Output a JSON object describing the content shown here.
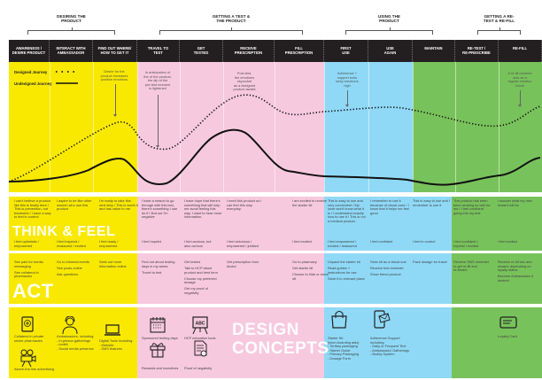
{
  "stages": [
    {
      "label": "DESIRING THE\nPRODUCT"
    },
    {
      "label": "GETTING A TEST &\nTHE PRODUCT"
    },
    {
      "label": "USING THE\nPRODUCT"
    },
    {
      "label": "GETTING A RE-\nTEST & RE-FILL"
    }
  ],
  "legend": {
    "designed": "Designed Journey",
    "undesigned": "Undesigned Journey"
  },
  "annotations": [
    "Desire for the\nproduct increases\npositive emotions",
    "In anticipation of\nthe of the product,\nthe dip of the\npre-test moment\nis lightened",
    "Post-test,\nthe emotions\nskyrocket\nas a designed\nproduct awaits",
    "Adherence +\nsupport tools\nkeep emotions\nhigh",
    "A re-fill moment\nacts as a\nregular emotion\nboost"
  ],
  "row_labels": {
    "think": "THINK & FEEL",
    "act": "ACT",
    "design": "DESIGN\nCONCEPTS"
  },
  "columns": [
    {
      "header": "AWARENESS /\nDESIRE PRODUCT",
      "think": "I can't believe a product like this is finally here / This is prevention, not treatment / I have a way to feel in control",
      "feel": "I feel optimistic /\nempowered",
      "act": [
        "See paid for media messaging",
        "See collateral in pharmacies"
      ]
    },
    {
      "header": "INTERACT WITH\nAMBASSADOR",
      "think": "I aspire to be like other women who use this product",
      "feel": "I feel inspired /\nreassured / excited",
      "act": [
        "Go to informal events",
        "See posts online",
        "Ask questions"
      ]
    },
    {
      "header": "FIND OUT WHERE/\nHOW TO GET IT",
      "think": "I'm ready to take this next step / This is worth it and has value to me",
      "feel": "I feel ready /\nempowered",
      "act": [
        "Seek out more information online"
      ]
    },
    {
      "header": "TRAVEL TO\nTEST",
      "think": "I have a reason to go through with this test, there's something I can do if I find out I'm negative",
      "feel": "I feel hopeful",
      "act": [
        "Find out about testing days in my areas",
        "Travel to test"
      ]
    },
    {
      "header": "GET\nTESTED",
      "think": "I have hope that there's something that will help me avoid feeling this way. I want to hear more information.",
      "feel": "I feel anxious, but\nalso curious",
      "act": [
        "Get tested",
        "Talk to HCP about product and best form",
        "Choose my preferred dosage",
        "Get my proof of negativity"
      ]
    },
    {
      "header": "RECEIVE\nPRESCRIPTION",
      "think": "I need this product so I can feel this way everyday.",
      "feel": "I feel victorious /\nempowered / jubilant",
      "act": [
        "Get prescription from doctor"
      ]
    },
    {
      "header": "FILL\nPRESCRIPTION",
      "think": "I am excited to receive the starter kit",
      "feel": "I feel excited",
      "act": [
        "Go to pharmacy",
        "Get starter kit",
        "Choose to hide or show off"
      ]
    },
    {
      "header": "FIRST\nUSE",
      "think": "This is easy to use and very convenient / My lover won't know what it is / I understand exactly how to use it / This is not a medical product.",
      "feel": "I feel empowered /\nexcited / reassured",
      "act": [
        "Unpack the starter kit",
        "Read guides + instructions for use",
        "Store it in relevant place"
      ]
    },
    {
      "header": "USE\nAGAIN",
      "think": "I remember to use it because of visual cues / I know that it helps me feel good",
      "feel": "I feel confident",
      "act": [
        "Sees kit as a visual cue",
        "Receive text reminder",
        "Show friend product"
      ]
    },
    {
      "header": "MAINTAIN",
      "think": "This is easy to use and I remember to use it",
      "feel": "I feel in control",
      "act": [
        "Pack dosage for travel"
      ]
    },
    {
      "header": "RE-TEST /\nRE-PRESCRIBE",
      "think": "This product has been been working so well for me / I feel confident going into my test",
      "feel": "I feel confident /\nhopeful / excited",
      "act": [
        "Receive SMS reminder\nto get re-fill and\nre-tested"
      ]
    },
    {
      "header": "RE-FILL",
      "think": "I wonder what my new reward will be",
      "feel": "I feel excited",
      "act": [
        "Receive re-fill box and reward, depending on loyalty status",
        "Become Ambassador if desired"
      ]
    }
  ],
  "design_concepts": [
    {
      "icon": "pharmacy-collateral-icon",
      "label": "Collateral in private\nsector pharmacies"
    },
    {
      "icon": "ambassador-icon",
      "label": "Ambassadors, including:\n- In-person gatherings\n- toolkit\n- Social media presence"
    },
    {
      "icon": "laptop-icon",
      "label": "Digital Tools including:\n- Website\n- SMS features"
    },
    {
      "icon": "film-camera-icon",
      "label": "Above-the-line advertising"
    },
    {
      "icon": "calendar-icon",
      "label": "Sponsored testing days"
    },
    {
      "icon": "abc-board-icon",
      "label": "HCP education tools",
      "icon_text": "ABC"
    },
    {
      "icon": "gift-icon",
      "label": "Rewards and incentives"
    },
    {
      "icon": "certificate-icon",
      "label": "Proof of negativity"
    },
    {
      "icon": "shopping-bag-icon",
      "label": "Starter Kit\n(w/on-boarding aids)\n- Tertiary packaging\n- Starter Guide\n- Primary Packaging\n- Dosage Form"
    },
    {
      "icon": "phone-message-icon",
      "label": "Adherence Support\nincluding:\n- Daily or Frequent Text\n- Ambassador Gatherings\n- Buddy System"
    },
    {
      "icon": "loyalty-card-icon",
      "label": "Loyalty Card"
    }
  ],
  "colors": {
    "yellow": "#f9e900",
    "pink": "#f7c9de",
    "blue": "#8fd9f7",
    "green": "#78c25b",
    "header": "#231f20"
  }
}
